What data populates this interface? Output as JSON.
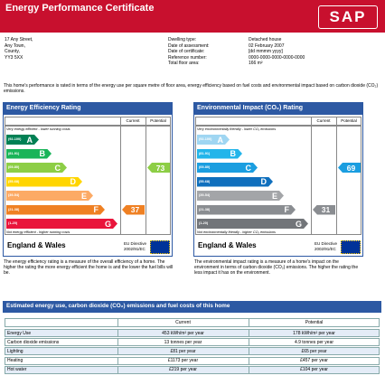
{
  "header": {
    "title": "Energy Performance Certificate",
    "logo": "SAP"
  },
  "address": [
    "17 Any Street,",
    "Any Town,",
    "County,",
    "YY3 5XX"
  ],
  "details": [
    {
      "label": "Dwelling type:",
      "value": "Detached house"
    },
    {
      "label": "Date of assessment:",
      "value": "02 February 2007"
    },
    {
      "label": "Date of certificate:",
      "value": "[dd mmmm yyyy]"
    },
    {
      "label": "Reference number:",
      "value": "0000-0000-0000-0000-0000"
    },
    {
      "label": "Total floor area:",
      "value": "166 m²"
    }
  ],
  "intro": "This home's performance is rated in terms of the energy use per square metre of floor area, energy efficiency based on fuel costs and environmental impact based on carbon dioxide (CO₂) emissions.",
  "panels": [
    {
      "title": "Energy Efficiency Rating",
      "columns": [
        "Current",
        "Potential"
      ],
      "top_note": "Very energy efficient - lower running costs",
      "bottom_note": "Not energy efficient - higher running costs",
      "bands": [
        {
          "range": "(92-100)",
          "letter": "A",
          "color": "#008054"
        },
        {
          "range": "(81-91)",
          "letter": "B",
          "color": "#19b459"
        },
        {
          "range": "(69-80)",
          "letter": "C",
          "color": "#8dce46"
        },
        {
          "range": "(55-68)",
          "letter": "D",
          "color": "#ffd500"
        },
        {
          "range": "(39-54)",
          "letter": "E",
          "color": "#fcaa65"
        },
        {
          "range": "(21-38)",
          "letter": "F",
          "color": "#ef8023"
        },
        {
          "range": "(1-20)",
          "letter": "G",
          "color": "#e9153b"
        }
      ],
      "ratings": [
        37,
        73
      ],
      "region": "England & Wales",
      "eu": [
        "EU Directive",
        "2002/91/EC"
      ],
      "description": "The energy efficiency rating is a measure of the overall efficiency of a home. The higher the rating the more energy efficient the home is and the lower the fuel bills will be."
    },
    {
      "title": "Environmental Impact (CO₂) Rating",
      "columns": [
        "Current",
        "Potential"
      ],
      "top_note": "Very environmentally friendly - lower CO₂ emissions",
      "bottom_note": "Not environmentally friendly - higher CO₂ emissions",
      "bands": [
        {
          "range": "(92-100)",
          "letter": "A",
          "color": "#9fd6f2"
        },
        {
          "range": "(81-91)",
          "letter": "B",
          "color": "#22b5ea"
        },
        {
          "range": "(69-80)",
          "letter": "C",
          "color": "#1b9ee0"
        },
        {
          "range": "(55-68)",
          "letter": "D",
          "color": "#0f6fbd"
        },
        {
          "range": "(39-54)",
          "letter": "E",
          "color": "#a3a5a8"
        },
        {
          "range": "(21-38)",
          "letter": "F",
          "color": "#8a8d91"
        },
        {
          "range": "(1-20)",
          "letter": "G",
          "color": "#727579"
        }
      ],
      "ratings": [
        31,
        69
      ],
      "region": "England & Wales",
      "eu": [
        "EU Directive",
        "2002/91/EC"
      ],
      "description": "The environmental impact rating is a measure of a home's impact on the environment in terms of carbon dioxide (CO₂) emissions. The higher the rating the less impact it has on the environment."
    }
  ],
  "costs": {
    "title": "Estimated energy use, carbon dioxide (CO₂) emissions and fuel costs of this home",
    "columns": [
      "Current",
      "Potential"
    ],
    "rows": [
      [
        "Energy Use",
        "453 kWh/m² per year",
        "178 kWh/m² per year"
      ],
      [
        "Carbon dioxide emissions",
        "13 tonnes per year",
        "4.9 tonnes per year"
      ],
      [
        "Lighting",
        "£81 per year",
        "£65 per year"
      ],
      [
        "Heating",
        "£1173 per year",
        "£457 per year"
      ],
      [
        "Hot water",
        "£219 per year",
        "£104 per year"
      ]
    ]
  }
}
